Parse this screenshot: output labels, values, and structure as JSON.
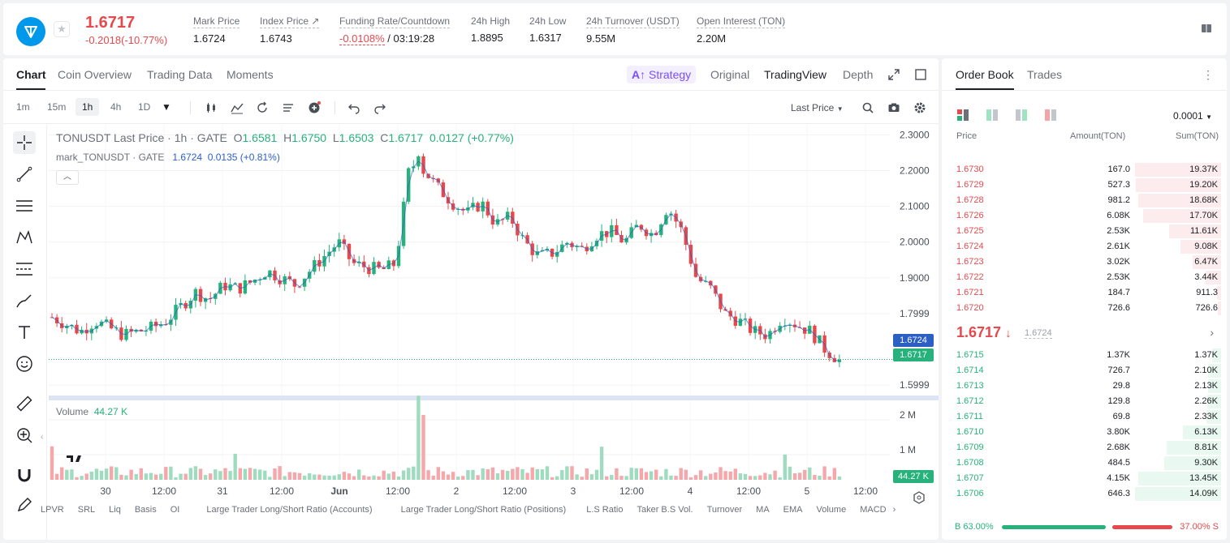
{
  "header": {
    "last_price": "1.6717",
    "last_change": "-0.2018(-10.77%)",
    "stats": [
      {
        "label": "Mark Price",
        "value": "1.6724"
      },
      {
        "label": "Index Price ↗",
        "value": "1.6743"
      },
      {
        "label": "Funding Rate/Countdown",
        "value_neg": "-0.0108%",
        "value": " / 03:19:28"
      },
      {
        "label": "24h High",
        "value": "1.8895"
      },
      {
        "label": "24h Low",
        "value": "1.6317"
      },
      {
        "label": "24h Turnover (USDT)",
        "value": "9.55M"
      },
      {
        "label": "Open Interest (TON)",
        "value": "2.20M"
      }
    ]
  },
  "tabs": {
    "items": [
      "Chart",
      "Coin Overview",
      "Trading Data",
      "Moments"
    ],
    "strategy": "Strategy",
    "views": [
      "Original",
      "TradingView",
      "Depth"
    ]
  },
  "toolbar": {
    "timeframes": [
      "1m",
      "15m",
      "1h",
      "4h",
      "1D"
    ],
    "last_price_select": "Last Price"
  },
  "legend": {
    "symbol": "TONUSDT Last Price · 1h · GATE",
    "o_label": "O",
    "o": "1.6581",
    "h_label": "H",
    "h": "1.6750",
    "l_label": "L",
    "l": "1.6503",
    "c_label": "C",
    "c": "1.6717",
    "chg": "0.0127 (+0.77%)",
    "mark_label": "mark_TONUSDT · GATE",
    "mark_value": "1.6724",
    "mark_chg": "0.0135 (+0.81%)",
    "volume_label": "Volume",
    "volume_value": "44.27 K"
  },
  "price_tags": {
    "mark": "1.6724",
    "last": "1.6717",
    "volume": "44.27 K"
  },
  "bottom_bar": [
    "LPVR",
    "SRL",
    "Liq",
    "Basis",
    "OI",
    "Large Trader Long/Short Ratio (Accounts)",
    "Large Trader Long/Short Ratio (Positions)",
    "L.S Ratio",
    "Taker B.S Vol.",
    "Turnover",
    "MA",
    "EMA",
    "Volume",
    "MACD"
  ],
  "colors": {
    "up": "#26b27a",
    "down": "#e5494d",
    "accent": "#7a4dff",
    "mark": "#2b5fc4"
  },
  "chart_data": {
    "type": "candlestick",
    "ylim": [
      1.58,
      2.31
    ],
    "yticks": [
      "2.3000",
      "2.2000",
      "2.1000",
      "2.0000",
      "1.9000",
      "1.7999",
      "1.5999"
    ],
    "xticks": [
      "30",
      "12:00",
      "31",
      "12:00",
      "Jun",
      "12:00",
      "2",
      "12:00",
      "3",
      "12:00",
      "4",
      "12:00",
      "5",
      "12:00"
    ],
    "vol_ticks": [
      "2 M",
      "1 M"
    ],
    "close_anchors": [
      1.79,
      1.77,
      1.75,
      1.78,
      1.76,
      1.74,
      1.75,
      1.76,
      1.78,
      1.82,
      1.86,
      1.84,
      1.88,
      1.87,
      1.89,
      1.92,
      1.9,
      1.88,
      1.92,
      1.96,
      2.0,
      1.94,
      1.93,
      1.92,
      1.94,
      2.22,
      2.2,
      2.15,
      2.11,
      2.08,
      2.11,
      2.05,
      2.07,
      2.0,
      1.96,
      1.97,
      2.0,
      1.98,
      2.02,
      2.03,
      2.0,
      2.05,
      2.02,
      2.1,
      2.03,
      1.9,
      1.87,
      1.8,
      1.78,
      1.75,
      1.74,
      1.79,
      1.77,
      1.75,
      1.7,
      1.67
    ]
  },
  "order_book": {
    "tabs": [
      "Order Book",
      "Trades"
    ],
    "precision": "0.0001",
    "headers": [
      "Price",
      "Amount(TON)",
      "Sum(TON)"
    ],
    "asks": [
      {
        "price": "1.6730",
        "amount": "167.0",
        "sum": "19.37K",
        "depth": 1.0
      },
      {
        "price": "1.6729",
        "amount": "527.3",
        "sum": "19.20K",
        "depth": 0.99
      },
      {
        "price": "1.6728",
        "amount": "981.2",
        "sum": "18.68K",
        "depth": 0.96
      },
      {
        "price": "1.6726",
        "amount": "6.08K",
        "sum": "17.70K",
        "depth": 0.91
      },
      {
        "price": "1.6725",
        "amount": "2.53K",
        "sum": "11.61K",
        "depth": 0.6
      },
      {
        "price": "1.6724",
        "amount": "2.61K",
        "sum": "9.08K",
        "depth": 0.47
      },
      {
        "price": "1.6723",
        "amount": "3.02K",
        "sum": "6.47K",
        "depth": 0.33
      },
      {
        "price": "1.6722",
        "amount": "2.53K",
        "sum": "3.44K",
        "depth": 0.18
      },
      {
        "price": "1.6721",
        "amount": "184.7",
        "sum": "911.3",
        "depth": 0.05
      },
      {
        "price": "1.6720",
        "amount": "726.6",
        "sum": "726.6",
        "depth": 0.04
      }
    ],
    "mid_price": "1.6717",
    "mid_arrow": "↓",
    "mid_mark": "1.6724",
    "bids": [
      {
        "price": "1.6715",
        "amount": "1.37K",
        "sum": "1.37K",
        "depth": 0.1
      },
      {
        "price": "1.6714",
        "amount": "726.7",
        "sum": "2.10K",
        "depth": 0.15
      },
      {
        "price": "1.6713",
        "amount": "29.8",
        "sum": "2.13K",
        "depth": 0.15
      },
      {
        "price": "1.6712",
        "amount": "129.8",
        "sum": "2.26K",
        "depth": 0.16
      },
      {
        "price": "1.6711",
        "amount": "69.8",
        "sum": "2.33K",
        "depth": 0.17
      },
      {
        "price": "1.6710",
        "amount": "3.80K",
        "sum": "6.13K",
        "depth": 0.44
      },
      {
        "price": "1.6709",
        "amount": "2.68K",
        "sum": "8.81K",
        "depth": 0.63
      },
      {
        "price": "1.6708",
        "amount": "484.5",
        "sum": "9.30K",
        "depth": 0.66
      },
      {
        "price": "1.6707",
        "amount": "4.15K",
        "sum": "13.45K",
        "depth": 0.96
      },
      {
        "price": "1.6706",
        "amount": "646.3",
        "sum": "14.09K",
        "depth": 1.0
      }
    ],
    "buy_ratio": "B 63.00%",
    "sell_ratio": "37.00% S"
  }
}
